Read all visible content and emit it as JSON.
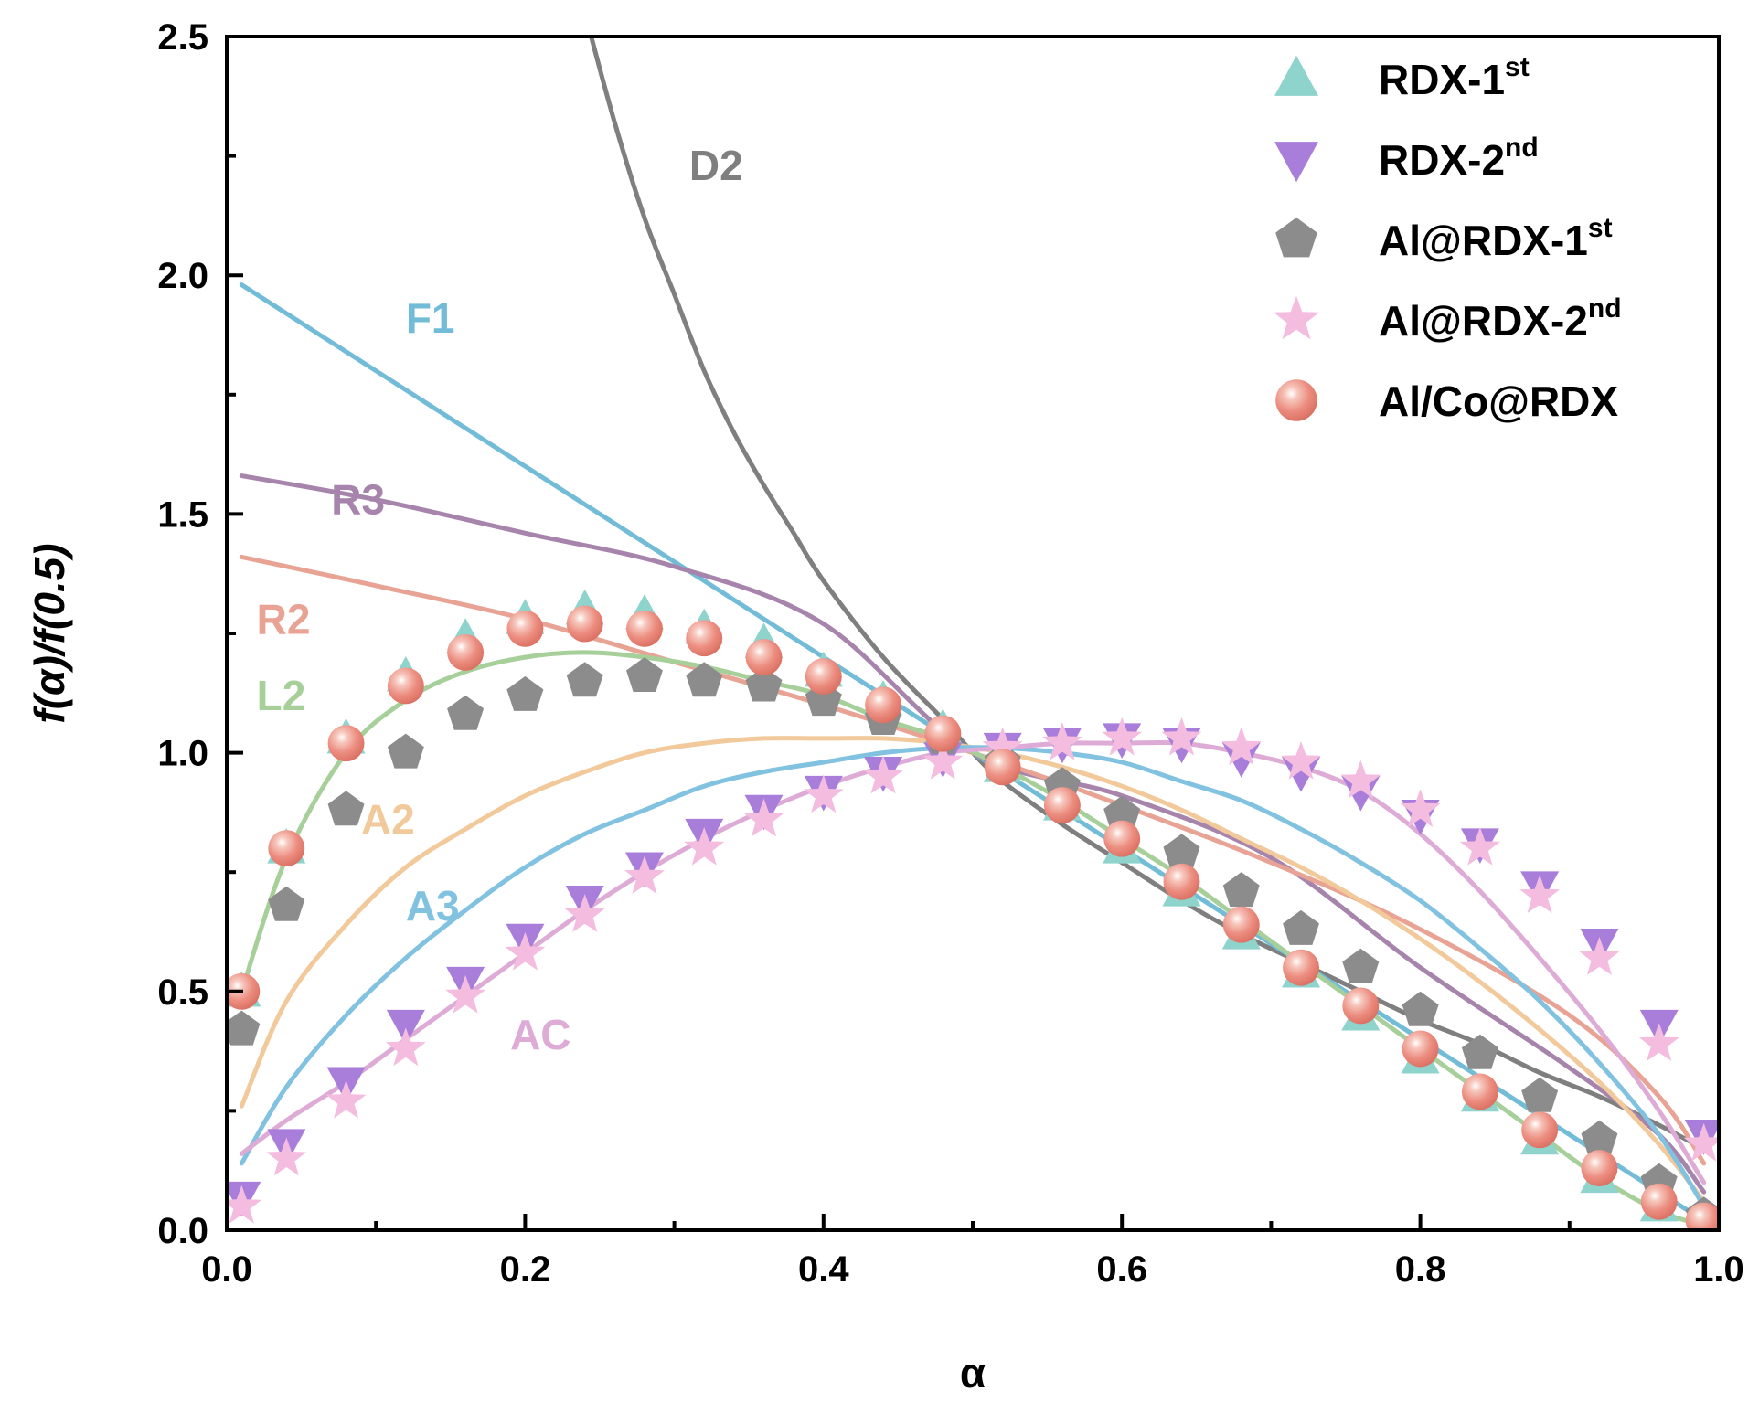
{
  "chart_data": {
    "type": "line",
    "xlabel": "α",
    "ylabel": "f(α)/f(0.5)",
    "xlim": [
      0.0,
      1.0
    ],
    "ylim": [
      0.0,
      2.5
    ],
    "xticks": [
      "0.0",
      "0.2",
      "0.4",
      "0.6",
      "0.8",
      "1.0"
    ],
    "yticks": [
      "0.0",
      "0.5",
      "1.0",
      "1.5",
      "2.0",
      "2.5"
    ],
    "grid": false,
    "legend_position": "top-right",
    "curves": [
      {
        "name": "D2",
        "color": "#7f7f7f",
        "label_at": [
          0.31,
          2.23
        ],
        "x": [
          0.24,
          0.26,
          0.28,
          0.3,
          0.32,
          0.34,
          0.36,
          0.38,
          0.4,
          0.44,
          0.48,
          0.5,
          0.52,
          0.56,
          0.6,
          0.64,
          0.68,
          0.72,
          0.76,
          0.8,
          0.84,
          0.88,
          0.92,
          0.96,
          0.99
        ],
        "y": [
          2.55,
          2.32,
          2.12,
          1.96,
          1.8,
          1.67,
          1.56,
          1.46,
          1.36,
          1.2,
          1.07,
          1.0,
          0.94,
          0.85,
          0.77,
          0.69,
          0.62,
          0.56,
          0.5,
          0.44,
          0.39,
          0.33,
          0.28,
          0.22,
          0.17
        ]
      },
      {
        "name": "F1",
        "color": "#72bcd8",
        "label_at": [
          0.12,
          1.91
        ],
        "x": [
          0.01,
          0.05,
          0.1,
          0.2,
          0.3,
          0.4,
          0.5,
          0.6,
          0.7,
          0.8,
          0.9,
          0.99
        ],
        "y": [
          1.98,
          1.9,
          1.8,
          1.6,
          1.4,
          1.2,
          1.0,
          0.8,
          0.6,
          0.4,
          0.2,
          0.02
        ]
      },
      {
        "name": "R3",
        "color": "#a784ac",
        "label_at": [
          0.07,
          1.53
        ],
        "x": [
          0.01,
          0.1,
          0.2,
          0.3,
          0.4,
          0.5,
          0.6,
          0.7,
          0.8,
          0.9,
          0.96,
          0.99
        ],
        "y": [
          1.58,
          1.53,
          1.46,
          1.39,
          1.27,
          1.0,
          0.91,
          0.78,
          0.55,
          0.34,
          0.2,
          0.08
        ]
      },
      {
        "name": "R2",
        "color": "#e8a394",
        "label_at": [
          0.02,
          1.28
        ],
        "x": [
          0.01,
          0.1,
          0.2,
          0.3,
          0.4,
          0.5,
          0.6,
          0.7,
          0.8,
          0.9,
          0.96,
          0.99
        ],
        "y": [
          1.41,
          1.35,
          1.28,
          1.19,
          1.1,
          1.0,
          0.89,
          0.77,
          0.63,
          0.45,
          0.28,
          0.14
        ]
      },
      {
        "name": "L2",
        "color": "#a7cf9a",
        "label_at": [
          0.02,
          1.12
        ],
        "x": [
          0.01,
          0.04,
          0.08,
          0.12,
          0.16,
          0.2,
          0.24,
          0.28,
          0.32,
          0.36,
          0.4,
          0.44,
          0.48,
          0.52,
          0.56,
          0.6,
          0.64,
          0.68,
          0.72,
          0.76,
          0.8,
          0.84,
          0.88,
          0.92,
          0.96,
          0.99
        ],
        "y": [
          0.5,
          0.78,
          1.0,
          1.11,
          1.17,
          1.2,
          1.21,
          1.2,
          1.18,
          1.15,
          1.12,
          1.07,
          1.03,
          0.97,
          0.9,
          0.82,
          0.74,
          0.65,
          0.56,
          0.47,
          0.38,
          0.29,
          0.2,
          0.11,
          0.04,
          0.01
        ]
      },
      {
        "name": "A2",
        "color": "#f2c99a",
        "label_at": [
          0.09,
          0.86
        ],
        "x": [
          0.01,
          0.04,
          0.08,
          0.12,
          0.16,
          0.2,
          0.24,
          0.28,
          0.32,
          0.36,
          0.4,
          0.44,
          0.48,
          0.52,
          0.56,
          0.6,
          0.64,
          0.68,
          0.72,
          0.76,
          0.8,
          0.84,
          0.88,
          0.92,
          0.96,
          0.99
        ],
        "y": [
          0.26,
          0.48,
          0.64,
          0.76,
          0.84,
          0.91,
          0.96,
          1.0,
          1.02,
          1.03,
          1.03,
          1.03,
          1.02,
          1.0,
          0.97,
          0.93,
          0.88,
          0.82,
          0.76,
          0.69,
          0.61,
          0.52,
          0.42,
          0.31,
          0.18,
          0.06
        ]
      },
      {
        "name": "A3",
        "color": "#80c2e0",
        "label_at": [
          0.12,
          0.68
        ],
        "x": [
          0.01,
          0.04,
          0.08,
          0.12,
          0.16,
          0.2,
          0.24,
          0.28,
          0.32,
          0.36,
          0.4,
          0.44,
          0.48,
          0.52,
          0.56,
          0.6,
          0.64,
          0.68,
          0.72,
          0.76,
          0.8,
          0.84,
          0.88,
          0.92,
          0.96,
          0.99
        ],
        "y": [
          0.14,
          0.3,
          0.45,
          0.57,
          0.67,
          0.76,
          0.83,
          0.88,
          0.93,
          0.96,
          0.98,
          1.0,
          1.01,
          1.01,
          1.0,
          0.98,
          0.94,
          0.9,
          0.84,
          0.77,
          0.69,
          0.59,
          0.48,
          0.35,
          0.2,
          0.05
        ]
      },
      {
        "name": "AC",
        "color": "#ddabd6",
        "label_at": [
          0.19,
          0.41
        ],
        "x": [
          0.01,
          0.04,
          0.08,
          0.12,
          0.16,
          0.2,
          0.24,
          0.28,
          0.32,
          0.36,
          0.4,
          0.44,
          0.48,
          0.52,
          0.56,
          0.6,
          0.64,
          0.68,
          0.72,
          0.76,
          0.8,
          0.84,
          0.88,
          0.92,
          0.96,
          0.99
        ],
        "y": [
          0.16,
          0.23,
          0.31,
          0.4,
          0.49,
          0.58,
          0.67,
          0.75,
          0.82,
          0.88,
          0.93,
          0.97,
          1.0,
          1.01,
          1.02,
          1.02,
          1.02,
          1.0,
          0.97,
          0.92,
          0.83,
          0.71,
          0.57,
          0.42,
          0.25,
          0.1
        ]
      }
    ],
    "series": [
      {
        "name": "RDX-1",
        "sup": "st",
        "marker": "triangle-up",
        "color": "#8fd3cd",
        "x": [
          0.01,
          0.04,
          0.08,
          0.12,
          0.16,
          0.2,
          0.24,
          0.28,
          0.32,
          0.36,
          0.4,
          0.44,
          0.48,
          0.52,
          0.56,
          0.6,
          0.64,
          0.68,
          0.72,
          0.76,
          0.8,
          0.84,
          0.88,
          0.92,
          0.96,
          0.99
        ],
        "y": [
          0.5,
          0.8,
          1.03,
          1.16,
          1.24,
          1.28,
          1.3,
          1.29,
          1.26,
          1.23,
          1.17,
          1.11,
          1.05,
          0.97,
          0.89,
          0.8,
          0.71,
          0.62,
          0.54,
          0.45,
          0.36,
          0.28,
          0.19,
          0.11,
          0.05,
          0.01
        ]
      },
      {
        "name": "RDX-2",
        "sup": "nd",
        "marker": "triangle-down",
        "color": "#a97edb",
        "x": [
          0.01,
          0.04,
          0.08,
          0.12,
          0.16,
          0.2,
          0.24,
          0.28,
          0.32,
          0.36,
          0.4,
          0.44,
          0.48,
          0.52,
          0.56,
          0.6,
          0.64,
          0.68,
          0.72,
          0.76,
          0.8,
          0.84,
          0.88,
          0.92,
          0.96,
          0.99
        ],
        "y": [
          0.07,
          0.18,
          0.31,
          0.43,
          0.52,
          0.61,
          0.69,
          0.76,
          0.83,
          0.88,
          0.92,
          0.96,
          0.99,
          1.01,
          1.02,
          1.03,
          1.02,
          0.99,
          0.96,
          0.92,
          0.87,
          0.81,
          0.72,
          0.6,
          0.43,
          0.2
        ]
      },
      {
        "name": "Al@RDX-1",
        "sup": "st",
        "marker": "pentagon",
        "color": "#8c8c8c",
        "x": [
          0.01,
          0.04,
          0.08,
          0.12,
          0.16,
          0.2,
          0.24,
          0.28,
          0.32,
          0.36,
          0.4,
          0.44,
          0.48,
          0.52,
          0.56,
          0.6,
          0.64,
          0.68,
          0.72,
          0.76,
          0.8,
          0.84,
          0.88,
          0.92,
          0.96,
          0.99
        ],
        "y": [
          0.42,
          0.68,
          0.88,
          1.0,
          1.08,
          1.12,
          1.15,
          1.16,
          1.15,
          1.14,
          1.11,
          1.07,
          1.03,
          0.98,
          0.93,
          0.87,
          0.79,
          0.71,
          0.63,
          0.55,
          0.46,
          0.37,
          0.28,
          0.19,
          0.1,
          0.03
        ]
      },
      {
        "name": "Al@RDX-2",
        "sup": "nd",
        "marker": "star",
        "color": "#f4bde0",
        "x": [
          0.01,
          0.04,
          0.08,
          0.12,
          0.16,
          0.2,
          0.24,
          0.28,
          0.32,
          0.36,
          0.4,
          0.44,
          0.48,
          0.52,
          0.56,
          0.6,
          0.64,
          0.68,
          0.72,
          0.76,
          0.8,
          0.84,
          0.88,
          0.92,
          0.96,
          0.99
        ],
        "y": [
          0.05,
          0.15,
          0.27,
          0.38,
          0.49,
          0.58,
          0.66,
          0.74,
          0.8,
          0.86,
          0.91,
          0.95,
          0.98,
          1.01,
          1.02,
          1.03,
          1.03,
          1.01,
          0.98,
          0.94,
          0.88,
          0.8,
          0.7,
          0.57,
          0.39,
          0.18
        ]
      },
      {
        "name": "Al/Co@RDX",
        "sup": "",
        "marker": "sphere",
        "color": "#ec8d80",
        "x": [
          0.01,
          0.04,
          0.08,
          0.12,
          0.16,
          0.2,
          0.24,
          0.28,
          0.32,
          0.36,
          0.4,
          0.44,
          0.48,
          0.52,
          0.56,
          0.6,
          0.64,
          0.68,
          0.72,
          0.76,
          0.8,
          0.84,
          0.88,
          0.92,
          0.96,
          0.99
        ],
        "y": [
          0.5,
          0.8,
          1.02,
          1.14,
          1.21,
          1.26,
          1.27,
          1.26,
          1.24,
          1.2,
          1.16,
          1.1,
          1.04,
          0.97,
          0.89,
          0.82,
          0.73,
          0.64,
          0.55,
          0.47,
          0.38,
          0.29,
          0.21,
          0.13,
          0.06,
          0.02
        ]
      }
    ]
  }
}
